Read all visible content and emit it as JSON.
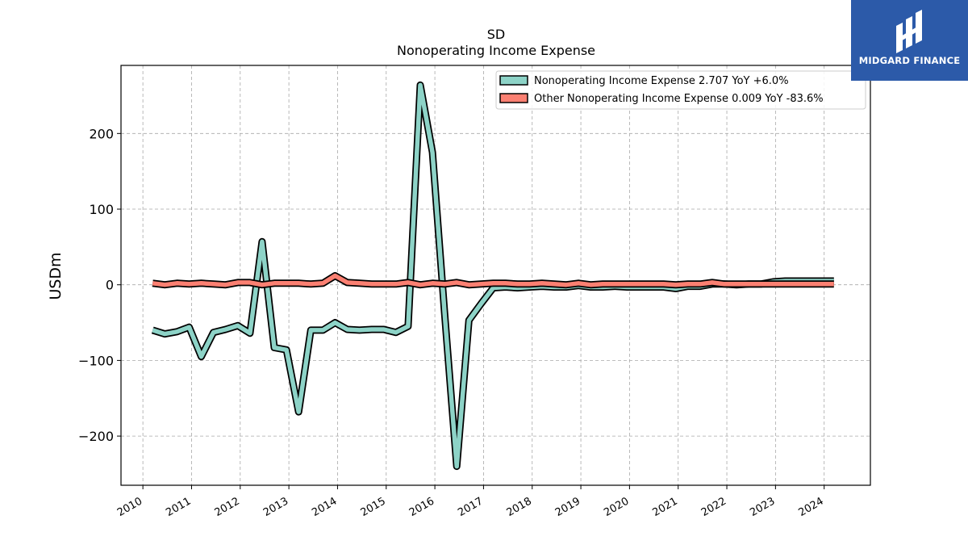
{
  "chart_data": {
    "type": "line",
    "title": "SD",
    "subtitle": "Nonoperating Income Expense",
    "ylabel": "USDm",
    "xlabel": "",
    "ylim": [
      -265,
      290
    ],
    "xlim": [
      2009.55,
      2024.95
    ],
    "yticks": [
      200,
      100,
      0,
      -100,
      -200
    ],
    "ytick_labels": [
      "200",
      "100",
      "0",
      "−100",
      "−200"
    ],
    "xticks": [
      2010,
      2011,
      2012,
      2013,
      2014,
      2015,
      2016,
      2017,
      2018,
      2019,
      2020,
      2021,
      2022,
      2023,
      2024
    ],
    "xtick_labels": [
      "2010",
      "2011",
      "2012",
      "2013",
      "2014",
      "2015",
      "2016",
      "2017",
      "2018",
      "2019",
      "2020",
      "2021",
      "2022",
      "2023",
      "2024"
    ],
    "grid": true,
    "legend_position": "top-right",
    "series": [
      {
        "name": "Nonoperating Income Expense  2.707 YoY +6.0%",
        "color": "#8dd3c7",
        "points": [
          [
            2010.2,
            -60
          ],
          [
            2010.45,
            -65
          ],
          [
            2010.7,
            -62
          ],
          [
            2010.95,
            -56
          ],
          [
            2011.2,
            -95
          ],
          [
            2011.45,
            -63
          ],
          [
            2011.7,
            -59
          ],
          [
            2011.95,
            -54
          ],
          [
            2012.2,
            -64
          ],
          [
            2012.45,
            57
          ],
          [
            2012.7,
            -83
          ],
          [
            2012.95,
            -86
          ],
          [
            2013.2,
            -168
          ],
          [
            2013.45,
            -60
          ],
          [
            2013.7,
            -60
          ],
          [
            2013.95,
            -50
          ],
          [
            2014.2,
            -59
          ],
          [
            2014.45,
            -60
          ],
          [
            2014.7,
            -59
          ],
          [
            2014.95,
            -59
          ],
          [
            2015.2,
            -63
          ],
          [
            2015.45,
            -55
          ],
          [
            2015.7,
            264
          ],
          [
            2015.95,
            175
          ],
          [
            2016.2,
            -38
          ],
          [
            2016.45,
            -240
          ],
          [
            2016.7,
            -47
          ],
          [
            2016.95,
            -25
          ],
          [
            2017.2,
            -4
          ],
          [
            2017.45,
            -3
          ],
          [
            2017.7,
            -4
          ],
          [
            2017.95,
            -3
          ],
          [
            2018.2,
            -2
          ],
          [
            2018.45,
            -3
          ],
          [
            2018.7,
            -3
          ],
          [
            2018.95,
            -1
          ],
          [
            2019.2,
            -3
          ],
          [
            2019.45,
            -3
          ],
          [
            2019.7,
            -2
          ],
          [
            2019.95,
            -3
          ],
          [
            2020.2,
            -3
          ],
          [
            2020.45,
            -3
          ],
          [
            2020.7,
            -3
          ],
          [
            2020.95,
            -5
          ],
          [
            2021.2,
            -2
          ],
          [
            2021.45,
            -2
          ],
          [
            2021.7,
            1
          ],
          [
            2021.95,
            1
          ],
          [
            2022.2,
            0
          ],
          [
            2022.45,
            1
          ],
          [
            2022.7,
            1
          ],
          [
            2022.95,
            4
          ],
          [
            2023.2,
            5
          ],
          [
            2023.45,
            5
          ],
          [
            2023.7,
            5
          ],
          [
            2023.95,
            5
          ],
          [
            2024.2,
            5
          ]
        ]
      },
      {
        "name": "Other Nonoperating Income Expense  0.009 YoY -83.6%",
        "color": "#fb8072",
        "points": [
          [
            2010.2,
            2
          ],
          [
            2010.45,
            0
          ],
          [
            2010.7,
            2
          ],
          [
            2010.95,
            1
          ],
          [
            2011.2,
            2
          ],
          [
            2011.45,
            1
          ],
          [
            2011.7,
            0
          ],
          [
            2011.95,
            3
          ],
          [
            2012.2,
            3
          ],
          [
            2012.45,
            0
          ],
          [
            2012.7,
            2
          ],
          [
            2012.95,
            2
          ],
          [
            2013.2,
            2
          ],
          [
            2013.45,
            1
          ],
          [
            2013.7,
            2
          ],
          [
            2013.95,
            12
          ],
          [
            2014.2,
            3
          ],
          [
            2014.45,
            2
          ],
          [
            2014.7,
            1
          ],
          [
            2014.95,
            1
          ],
          [
            2015.2,
            1
          ],
          [
            2015.45,
            3
          ],
          [
            2015.7,
            0
          ],
          [
            2015.95,
            2
          ],
          [
            2016.2,
            1
          ],
          [
            2016.45,
            3
          ],
          [
            2016.7,
            0
          ],
          [
            2016.95,
            1
          ],
          [
            2017.2,
            2
          ],
          [
            2017.45,
            2
          ],
          [
            2017.7,
            1
          ],
          [
            2017.95,
            1
          ],
          [
            2018.2,
            2
          ],
          [
            2018.45,
            1
          ],
          [
            2018.7,
            0
          ],
          [
            2018.95,
            2
          ],
          [
            2019.2,
            0
          ],
          [
            2019.45,
            1
          ],
          [
            2019.7,
            1
          ],
          [
            2019.95,
            1
          ],
          [
            2020.2,
            1
          ],
          [
            2020.45,
            1
          ],
          [
            2020.7,
            1
          ],
          [
            2020.95,
            0
          ],
          [
            2021.2,
            1
          ],
          [
            2021.45,
            1
          ],
          [
            2021.7,
            3
          ],
          [
            2021.95,
            1
          ],
          [
            2022.2,
            1
          ],
          [
            2022.45,
            1
          ],
          [
            2022.7,
            1
          ],
          [
            2022.95,
            1
          ],
          [
            2023.2,
            1
          ],
          [
            2023.45,
            1
          ],
          [
            2023.7,
            1
          ],
          [
            2023.95,
            1
          ],
          [
            2024.2,
            1
          ]
        ]
      }
    ]
  },
  "logo": {
    "text": "MIDGARD FINANCE",
    "background": "#2c5aa9"
  }
}
